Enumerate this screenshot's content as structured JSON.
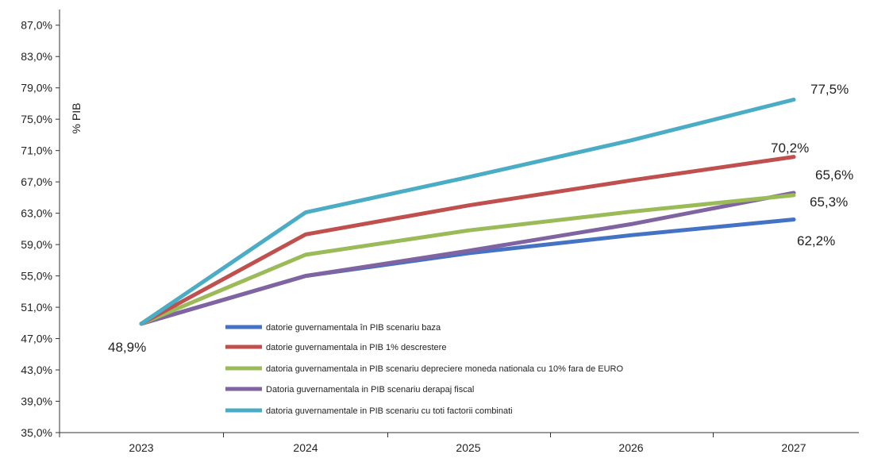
{
  "chart_data": {
    "type": "line",
    "ylabel": "% PIB",
    "xlabel": "",
    "categories": [
      "2023",
      "2024",
      "2025",
      "2026",
      "2027"
    ],
    "ylim": [
      35.0,
      89.0
    ],
    "yticks": [
      35.0,
      39.0,
      43.0,
      47.0,
      51.0,
      55.0,
      59.0,
      63.0,
      67.0,
      71.0,
      75.0,
      79.0,
      83.0,
      87.0
    ],
    "ytick_labels": [
      "35,0%",
      "39,0%",
      "43,0%",
      "47,0%",
      "51,0%",
      "55,0%",
      "59,0%",
      "63,0%",
      "67,0%",
      "71,0%",
      "75,0%",
      "79,0%",
      "83,0%",
      "87,0%"
    ],
    "grid": false,
    "legend_position": "bottom-center-inside",
    "series": [
      {
        "name": "datorie guvernamentala în PIB scenariu baza",
        "color": "#4472C4",
        "values": [
          48.9,
          55.0,
          57.9,
          60.2,
          62.2
        ]
      },
      {
        "name": "datorie guvernamentala in  PIB 1% descrestere",
        "color": "#C0504D",
        "values": [
          48.9,
          60.3,
          64.0,
          67.2,
          70.2
        ]
      },
      {
        "name": "datoria guvernamentala in PIB  scenariu depreciere moneda nationala cu 10% fara de EURO",
        "color": "#9BBB59",
        "values": [
          48.9,
          57.7,
          60.8,
          63.2,
          65.3
        ]
      },
      {
        "name": "Datoria guvernamentala in PIB scenariu derapaj fiscal",
        "color": "#8064A2",
        "values": [
          48.9,
          55.0,
          58.2,
          61.6,
          65.6
        ]
      },
      {
        "name": "datoria guvernamentale in PIB scenariu cu toti factorii combinati",
        "color": "#4BACC6",
        "values": [
          48.9,
          63.1,
          67.6,
          72.3,
          77.5
        ]
      }
    ],
    "data_labels": [
      {
        "text": "48,9%",
        "series": 0,
        "index": 0
      },
      {
        "text": "77,5%",
        "series": 4,
        "index": 4
      },
      {
        "text": "70,2%",
        "series": 1,
        "index": 4
      },
      {
        "text": "65,6%",
        "series": 3,
        "index": 4
      },
      {
        "text": "65,3%",
        "series": 2,
        "index": 4
      },
      {
        "text": "62,2%",
        "series": 0,
        "index": 4
      }
    ]
  }
}
